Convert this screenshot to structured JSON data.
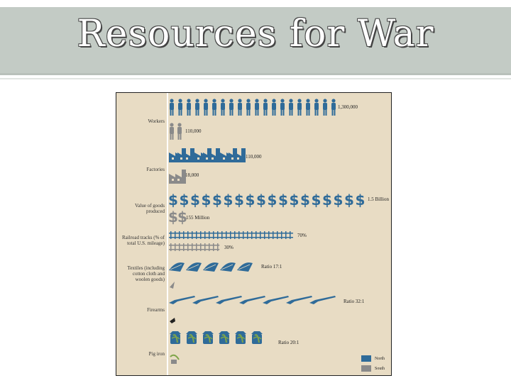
{
  "slide": {
    "title": "Resources for War"
  },
  "colors": {
    "north": "#2f6b99",
    "south": "#8a8a8a",
    "background": "#e8dcc4"
  },
  "legend": [
    {
      "label": "North",
      "color": "#2f6b99"
    },
    {
      "label": "South",
      "color": "#8a8a8a"
    }
  ],
  "chart_data": {
    "type": "pictograph",
    "series_names": [
      "North",
      "South"
    ],
    "rows": [
      {
        "label": "Workers",
        "north": "1,300,000",
        "south": "110,000",
        "north_icons": 20,
        "south_icons": 2,
        "icon": "worker-icon"
      },
      {
        "label": "Factories",
        "north": "110,000",
        "south": "18,000",
        "north_icons": 3,
        "south_icons": 1,
        "icon": "factory-icon"
      },
      {
        "label": "Value of goods produced",
        "north": "1.5 Billion",
        "south": "155 Million",
        "north_icons": 18,
        "south_icons": 2,
        "icon": "dollar-icon"
      },
      {
        "label": "Railroad tracks (% of total U.S. mileage)",
        "north": "70%",
        "south": "30%",
        "north_pct": 70,
        "south_pct": 30,
        "icon": "railroad-icon"
      },
      {
        "label": "Textiles (including cotton cloth and woolen goods)",
        "north": "Ratio 17:1",
        "north_icons": 5,
        "south_icons": 0.25,
        "icon": "textile-icon"
      },
      {
        "label": "Firearms",
        "north": "Ratio 32:1",
        "north_icons": 7,
        "south_icons": 0.25,
        "icon": "rifle-icon"
      },
      {
        "label": "Pig iron",
        "north": "Ratio 20:1",
        "north_icons": 6,
        "south_icons": 0.3,
        "icon": "pig-iron-icon"
      }
    ]
  }
}
